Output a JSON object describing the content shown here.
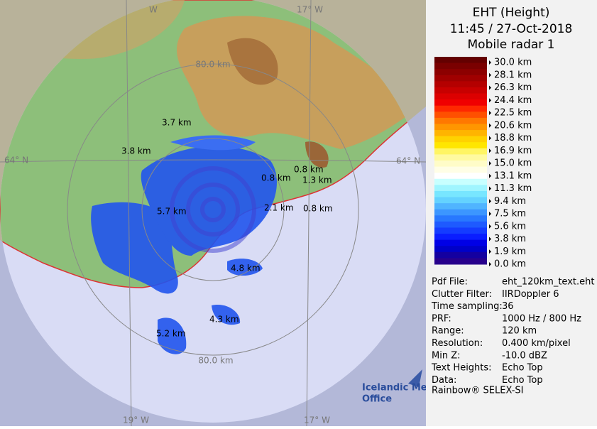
{
  "header": {
    "title": "EHT (Height)",
    "time": "11:45 / 27-Oct-2018",
    "radar": "Mobile radar 1"
  },
  "legend": {
    "labels": [
      "30.0 km",
      "28.1 km",
      "26.3 km",
      "24.4 km",
      "22.5 km",
      "20.6 km",
      "18.8 km",
      "16.9 km",
      "15.0 km",
      "13.1 km",
      "11.3 km",
      "9.4 km",
      "7.5 km",
      "5.6 km",
      "3.8 km",
      "1.9 km",
      "0.0 km"
    ],
    "colors": [
      "#640000",
      "#7a0000",
      "#8c0000",
      "#a00000",
      "#b40000",
      "#c80000",
      "#dc0000",
      "#f00000",
      "#ff2800",
      "#ff5000",
      "#ff7800",
      "#ff9600",
      "#ffb400",
      "#ffd200",
      "#ffe600",
      "#fff564",
      "#fffaa0",
      "#fffcc8",
      "#fffee6",
      "#ffffff",
      "#c8ffff",
      "#a0f5ff",
      "#78e6ff",
      "#64d2ff",
      "#50b4ff",
      "#3c96ff",
      "#2878ff",
      "#1e5aff",
      "#143cff",
      "#0a1eff",
      "#0000e6",
      "#0000c8",
      "#1400a0",
      "#28008c"
    ]
  },
  "info": [
    [
      "Pdf File:",
      "eht_120km_text.eht"
    ],
    [
      "Clutter Filter:",
      "IIRDoppler 6"
    ],
    [
      "Time sampling:",
      "36"
    ],
    [
      "PRF:",
      "1000 Hz / 800 Hz"
    ],
    [
      "Range:",
      "120 km"
    ],
    [
      "Resolution:",
      "0.400 km/pixel"
    ],
    [
      "Min Z:",
      "-10.0 dBZ"
    ],
    [
      "Text Heights:",
      "Echo Top"
    ],
    [
      "Data:",
      "Echo Top"
    ]
  ],
  "footer": "Rainbow® SELEX-SI",
  "map": {
    "ring_top": "80.0 km",
    "ring_bottom": "80.0 km",
    "lat_left": "64° N",
    "lat_right": "64° N",
    "lon_top_left": "W",
    "lon_top_right": "17° W",
    "lon_bottom_left": "19° W",
    "lon_bottom_right": "17° W",
    "heights": [
      "3.7 km",
      "3.8 km",
      "0.8 km",
      "0.8 km",
      "1.3 km",
      "5.7 km",
      "2.1 km",
      "0.8 km",
      "4.8 km",
      "4.3 km",
      "5.2 km"
    ],
    "logo": [
      "Icelandic Met",
      "Office"
    ]
  }
}
